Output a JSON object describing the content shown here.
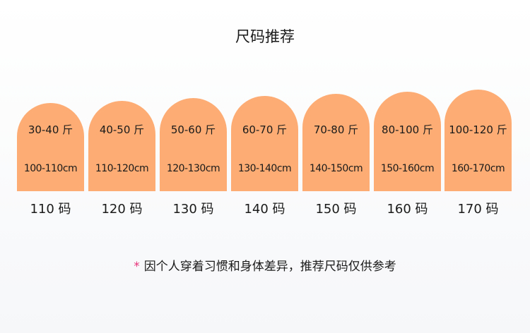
{
  "title": "尺码推荐",
  "accent_color": "#fdad74",
  "sizes": [
    {
      "weight": "30-40 斤",
      "height": "100-110cm",
      "label": "110 码"
    },
    {
      "weight": "40-50 斤",
      "height": "110-120cm",
      "label": "120 码"
    },
    {
      "weight": "50-60 斤",
      "height": "120-130cm",
      "label": "130 码"
    },
    {
      "weight": "60-70 斤",
      "height": "130-140cm",
      "label": "140 码"
    },
    {
      "weight": "70-80 斤",
      "height": "140-150cm",
      "label": "150 码"
    },
    {
      "weight": "80-100 斤",
      "height": "150-160cm",
      "label": "160 码"
    },
    {
      "weight": "100-120 斤",
      "height": "160-170cm",
      "label": "170 码"
    }
  ],
  "note": {
    "star": "*",
    "text": "因个人穿着习惯和身体差异，推荐尺码仅供参考"
  }
}
